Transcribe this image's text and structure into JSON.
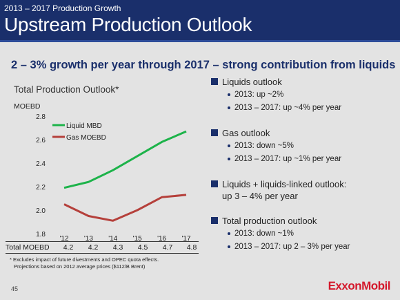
{
  "header": {
    "kicker": "2013 – 2017 Production Growth",
    "title": "Upstream Production Outlook"
  },
  "headline": "2 – 3% growth per year through 2017 – strong contribution from liquids",
  "chart_data": {
    "type": "line",
    "title": "Total Production Outlook*",
    "ylabel": "MOEBD",
    "categories": [
      "'12",
      "'13",
      "'14",
      "'15",
      "'16",
      "'17"
    ],
    "ylim": [
      1.8,
      2.8
    ],
    "yticks": [
      "1.8",
      "2.0",
      "2.2",
      "2.4",
      "2.6",
      "2.8"
    ],
    "grid": false,
    "legend_position": "top-left",
    "series": [
      {
        "name": "Liquid MBD",
        "color": "#1db34a",
        "values": [
          2.19,
          2.24,
          2.34,
          2.46,
          2.58,
          2.67
        ]
      },
      {
        "name": "Gas MOEBD",
        "color": "#b5403b",
        "values": [
          2.05,
          1.95,
          1.91,
          2.0,
          2.11,
          2.13
        ]
      }
    ]
  },
  "total_row": {
    "label": "Total MOEBD",
    "values": [
      "4.2",
      "4.2",
      "4.3",
      "4.5",
      "4.7",
      "4.8"
    ]
  },
  "footnote": {
    "line1": "* Excludes impact of future divestments and OPEC quota effects.",
    "line2": "Projections based on 2012 average prices ($112/B Brent)"
  },
  "outlook": [
    {
      "title": "Liquids outlook",
      "bullets": [
        "2013: up ~2%",
        "2013 – 2017: up ~4% per year"
      ]
    },
    {
      "title": "Gas outlook",
      "bullets": [
        "2013: down ~5%",
        "2013 – 2017: up ~1% per year"
      ]
    },
    {
      "title_line1": "Liquids + liquids-linked outlook:",
      "title_line2": "up 3 – 4% per year"
    },
    {
      "title": "Total production outlook",
      "bullets": [
        "2013: down ~1%",
        "2013 – 2017: up 2 – 3% per year"
      ]
    }
  ],
  "page_number": "45",
  "logo": "ExxonMobil",
  "colors": {
    "header": "#1a2f6b",
    "accent": "#1a2f6b",
    "logo": "#d4192c"
  }
}
